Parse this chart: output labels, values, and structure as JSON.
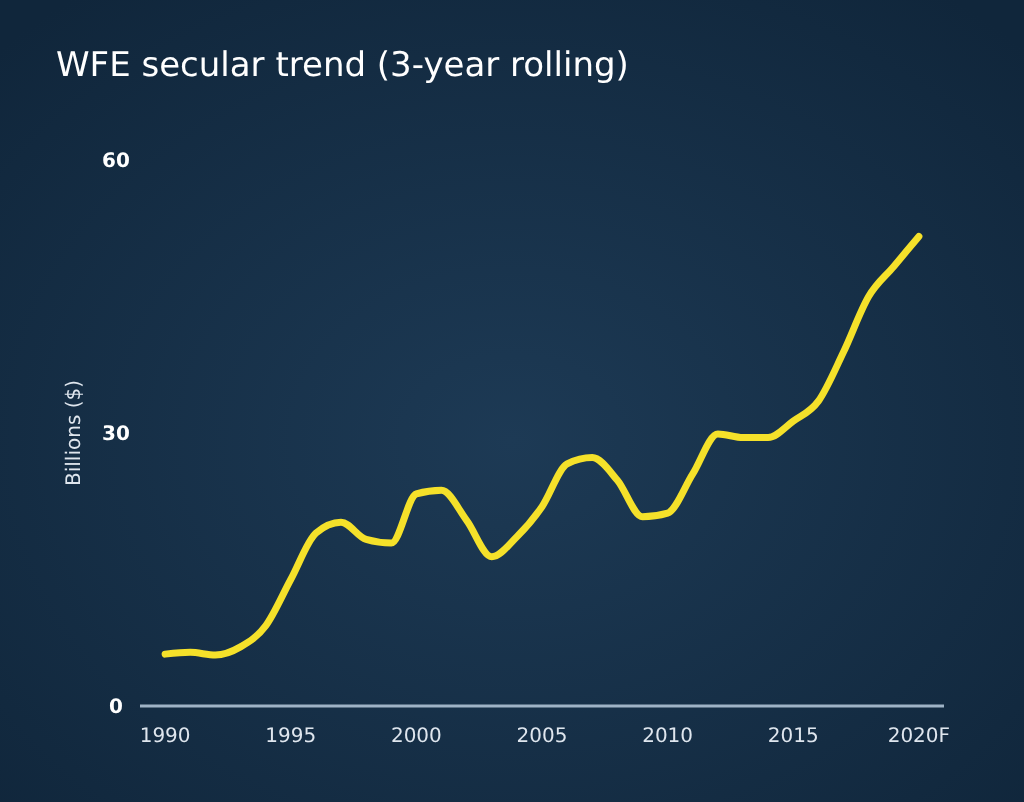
{
  "chart_data": {
    "type": "line",
    "title": "WFE secular trend (3-year rolling)",
    "ylabel": "Billions ($)",
    "x": [
      1990,
      1991,
      1992,
      1993,
      1994,
      1995,
      1996,
      1997,
      1998,
      1999,
      2000,
      2001,
      2002,
      2003,
      2004,
      2005,
      2006,
      2007,
      2008,
      2009,
      2010,
      2011,
      2012,
      2013,
      2014,
      2015,
      2016,
      2017,
      2018,
      2019,
      2020
    ],
    "series": [
      {
        "color": "#f5e12a",
        "values": [
          5.7,
          5.9,
          5.6,
          6.5,
          8.8,
          13.9,
          19,
          20.2,
          18.3,
          17.9,
          23.3,
          23.7,
          20.4,
          16.4,
          18.6,
          21.9,
          26.6,
          27.3,
          24.8,
          20.8,
          21.2,
          25.5,
          29.9,
          29.5,
          29.5,
          31.3,
          33.5,
          38.9,
          45,
          48.3,
          51.6
        ]
      }
    ],
    "xlim": [
      1989,
      2021
    ],
    "xticks": [
      1990,
      1995,
      2000,
      2005,
      2010,
      2015,
      {
        "value": 2020,
        "label": "2020F"
      }
    ],
    "ylim": [
      0,
      60
    ],
    "yticks": [
      0,
      30,
      60
    ],
    "grid": false,
    "marker": "none",
    "line_style": "solid"
  }
}
